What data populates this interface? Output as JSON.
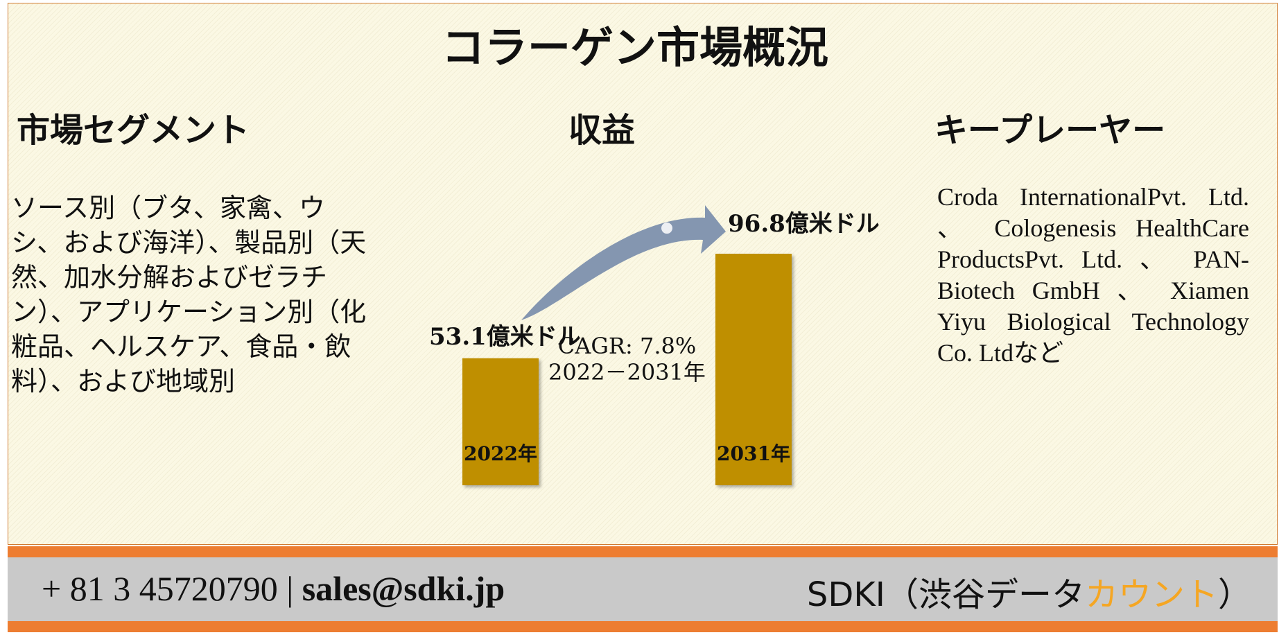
{
  "title": "コラーゲン市場概況",
  "segments": {
    "heading": "市場セグメント",
    "body": "ソース別（ブタ、家禽、ウシ、および海洋）、製品別（天然、加水分解およびゼラチン）、アプリケーション別（化粧品、ヘルスケア、食品・飲料）、および地域別"
  },
  "revenue": {
    "heading": "収益"
  },
  "key_players": {
    "heading": "キープレーヤー",
    "body": "Croda InternationalPvt. Ltd. 、 Cologenesis HealthCare ProductsPvt. Ltd. 、 PAN-Biotech GmbH 、 Xiamen Yiyu Biological Technology Co. Ltdなど"
  },
  "chart_data": {
    "type": "bar",
    "categories": [
      "2022年",
      "2031年"
    ],
    "values": [
      53.1,
      96.8
    ],
    "value_labels": [
      "53.1億米ドル",
      "96.8億米ドル"
    ],
    "unit": "億米ドル",
    "annotation_line1": "CAGR: 7.8%",
    "annotation_line2": "2022－2031年",
    "bar_color": "#bf8f00",
    "arrow_color": "#8496b0"
  },
  "footer": {
    "phone": "+ 81 3 45720790",
    "separator": "|",
    "email": "sales@sdki.jp",
    "brand_prefix": "SDKI（渋谷データ",
    "brand_accent": "カウント",
    "brand_suffix": "）"
  },
  "colors": {
    "accent": "#ed7d31",
    "footer_band": "#c9c9c9",
    "brand_accent": "#f5a623",
    "background": "#fbf8e4"
  }
}
